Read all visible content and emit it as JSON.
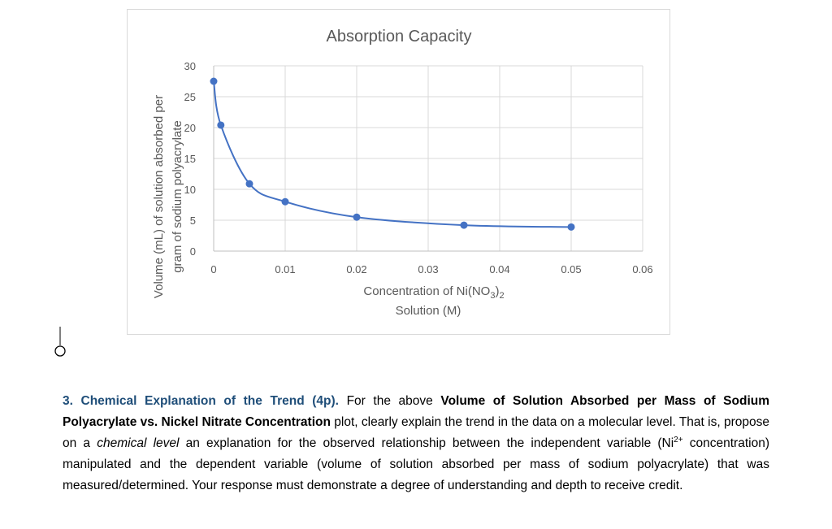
{
  "chart_data": {
    "type": "scatter",
    "title": "Absorption Capacity",
    "xlabel_main": "Concentration of Ni(NO",
    "xlabel_sub3": "3",
    "xlabel_close": ")",
    "xlabel_sub2": "2",
    "xlabel_line2": "Solution (M)",
    "ylabel_line1": "Volume (mL) of solution absorbed per",
    "ylabel_line2": "gram of sodium polyacrylate",
    "xlim": [
      0,
      0.06
    ],
    "ylim": [
      0,
      30
    ],
    "x_ticks": [
      "0",
      "0.01",
      "0.02",
      "0.03",
      "0.04",
      "0.05",
      "0.06"
    ],
    "y_ticks": [
      "0",
      "5",
      "10",
      "15",
      "20",
      "25",
      "30"
    ],
    "grid": true,
    "smooth_line": true,
    "series": [
      {
        "color": "#4472c4",
        "points": [
          {
            "x": 0,
            "y": 27.5
          },
          {
            "x": 0.001,
            "y": 20.4
          },
          {
            "x": 0.005,
            "y": 10.9
          },
          {
            "x": 0.01,
            "y": 8.0
          },
          {
            "x": 0.02,
            "y": 5.5
          },
          {
            "x": 0.035,
            "y": 4.2
          },
          {
            "x": 0.05,
            "y": 3.9
          }
        ]
      }
    ]
  },
  "question": {
    "number_label": "3. Chemical Explanation of the Trend (4p).",
    "intro": "For the above",
    "bold_title_1": "Volume of Solution Absorbed per Mass of Sodium Polyacrylate vs. Nickel Nitrate Concentration",
    "text_1": "plot, clearly explain the trend in the data on a molecular level. That is, propose on a",
    "italic_1": "chemical level",
    "text_2": "an explanation for the observed relationship between the independent variable (Ni",
    "sup_1": "2+",
    "text_3": "concentration) manipulated and the dependent variable (volume of solution absorbed per mass of sodium polyacrylate) that was measured/determined. Your response must demonstrate a degree of understanding and depth to receive credit."
  }
}
